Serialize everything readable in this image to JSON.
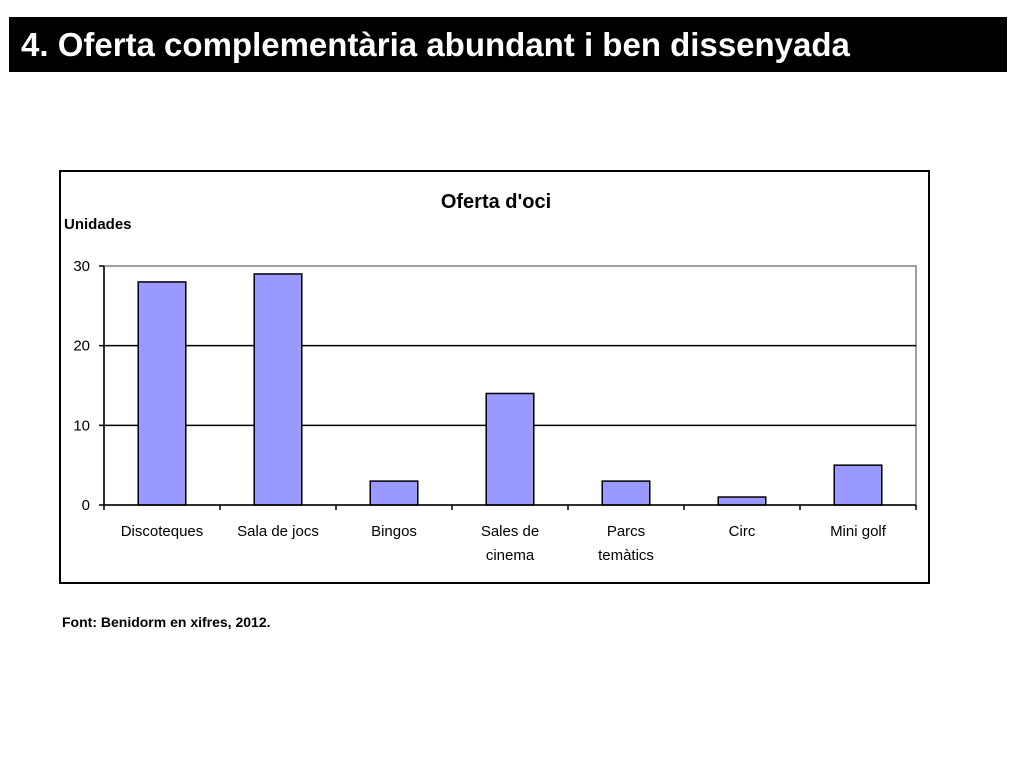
{
  "slide": {
    "title": "4. Oferta complementària abundant i ben dissenyada",
    "source": "Font: Benidorm en xifres, 2012."
  },
  "colors": {
    "title_bg": "#000000",
    "title_fg": "#ffffff",
    "bar_fill": "#9999ff",
    "bar_stroke": "#000000",
    "plot_border": "#808080",
    "gridline": "#000000"
  },
  "chart_data": {
    "type": "bar",
    "title": "Oferta d'oci",
    "ylabel": "Unidades",
    "xlabel": "",
    "categories": [
      [
        "Discoteques"
      ],
      [
        "Sala de jocs"
      ],
      [
        "Bingos"
      ],
      [
        "Sales de",
        "cinema"
      ],
      [
        "Parcs",
        "temàtics"
      ],
      [
        "Circ"
      ],
      [
        "Mini golf"
      ]
    ],
    "values": [
      28,
      29,
      3,
      14,
      3,
      1,
      5
    ],
    "ylim": [
      0,
      30
    ],
    "yticks": [
      "0",
      "10",
      "20",
      "30"
    ],
    "grid": true,
    "legend": "none"
  }
}
